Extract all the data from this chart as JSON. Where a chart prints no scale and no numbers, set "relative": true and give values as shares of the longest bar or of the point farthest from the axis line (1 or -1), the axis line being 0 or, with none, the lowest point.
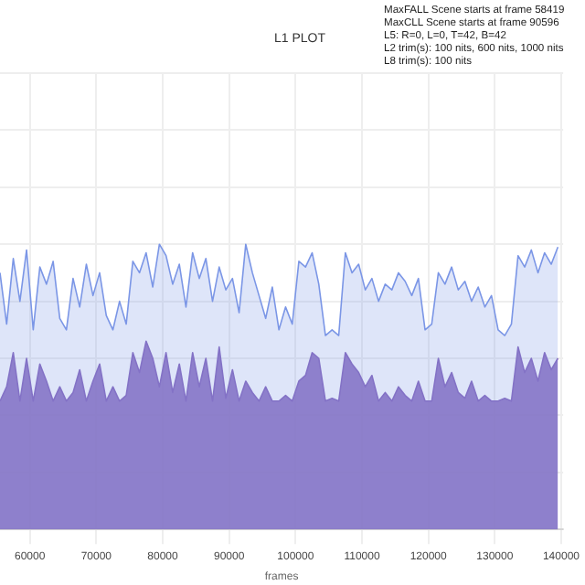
{
  "chart_data": {
    "type": "area",
    "relative": true,
    "title": "L1 PLOT",
    "xlabel": "frames",
    "annotations": [
      "MaxFALL Scene starts at frame 58419",
      "MaxCLL Scene starts at frame 90596",
      "L5: R=0, L=0, T=42, B=42",
      "L2 trim(s): 100 nits, 600 nits, 1000 nits",
      "L8 trim(s): 100 nits"
    ],
    "xlim": [
      55500,
      140300
    ],
    "xticks": [
      60000,
      70000,
      80000,
      90000,
      100000,
      110000,
      120000,
      130000,
      140000
    ],
    "grid": true,
    "legend": false,
    "series": [
      {
        "color": "#7b96e6",
        "x": [
          55500,
          56500,
          57500,
          58500,
          59500,
          60500,
          61500,
          62500,
          63500,
          64500,
          65500,
          66500,
          67500,
          68500,
          69500,
          70500,
          71500,
          72500,
          73500,
          74500,
          75500,
          76500,
          77500,
          78500,
          79500,
          80500,
          81500,
          82500,
          83500,
          84500,
          85500,
          86500,
          87500,
          88500,
          89500,
          90500,
          91500,
          92500,
          93500,
          94500,
          95500,
          96500,
          97500,
          98500,
          99500,
          100500,
          101500,
          102500,
          103500,
          104500,
          105500,
          106500,
          107500,
          108500,
          109500,
          110500,
          111500,
          112500,
          113500,
          114500,
          115500,
          116500,
          117500,
          118500,
          119500,
          120500,
          121500,
          122500,
          123500,
          124500,
          125500,
          126500,
          127500,
          128500,
          129500,
          130500,
          131500,
          132500,
          133500,
          134500,
          135500,
          136500,
          137500,
          138500,
          139500
        ],
        "values": [
          0.9,
          0.72,
          0.95,
          0.8,
          0.98,
          0.7,
          0.92,
          0.86,
          0.94,
          0.74,
          0.7,
          0.88,
          0.78,
          0.93,
          0.82,
          0.9,
          0.75,
          0.7,
          0.8,
          0.72,
          0.94,
          0.9,
          0.97,
          0.85,
          1.0,
          0.96,
          0.86,
          0.93,
          0.78,
          0.97,
          0.88,
          0.95,
          0.8,
          0.92,
          0.84,
          0.88,
          0.76,
          1.0,
          0.9,
          0.82,
          0.74,
          0.85,
          0.7,
          0.78,
          0.72,
          0.94,
          0.92,
          0.97,
          0.86,
          0.68,
          0.7,
          0.68,
          0.97,
          0.9,
          0.93,
          0.84,
          0.88,
          0.8,
          0.86,
          0.84,
          0.9,
          0.87,
          0.82,
          0.88,
          0.7,
          0.72,
          0.9,
          0.86,
          0.92,
          0.84,
          0.87,
          0.8,
          0.85,
          0.78,
          0.82,
          0.7,
          0.68,
          0.72,
          0.96,
          0.92,
          0.98,
          0.9,
          0.97,
          0.93,
          0.99
        ]
      },
      {
        "color": "#8666bb",
        "x": [
          55500,
          56500,
          57500,
          58500,
          59500,
          60500,
          61500,
          62500,
          63500,
          64500,
          65500,
          66500,
          67500,
          68500,
          69500,
          70500,
          71500,
          72500,
          73500,
          74500,
          75500,
          76500,
          77500,
          78500,
          79500,
          80500,
          81500,
          82500,
          83500,
          84500,
          85500,
          86500,
          87500,
          88500,
          89500,
          90500,
          91500,
          92500,
          93500,
          94500,
          95500,
          96500,
          97500,
          98500,
          99500,
          100500,
          101500,
          102500,
          103500,
          104500,
          105500,
          106500,
          107500,
          108500,
          109500,
          110500,
          111500,
          112500,
          113500,
          114500,
          115500,
          116500,
          117500,
          118500,
          119500,
          120500,
          121500,
          122500,
          123500,
          124500,
          125500,
          126500,
          127500,
          128500,
          129500,
          130500,
          131500,
          132500,
          133500,
          134500,
          135500,
          136500,
          137500,
          138500,
          139500
        ],
        "values": [
          0.45,
          0.5,
          0.62,
          0.45,
          0.6,
          0.45,
          0.58,
          0.52,
          0.45,
          0.5,
          0.45,
          0.48,
          0.56,
          0.45,
          0.52,
          0.58,
          0.45,
          0.5,
          0.45,
          0.47,
          0.62,
          0.55,
          0.66,
          0.6,
          0.5,
          0.62,
          0.48,
          0.58,
          0.45,
          0.62,
          0.5,
          0.6,
          0.45,
          0.64,
          0.46,
          0.56,
          0.45,
          0.52,
          0.48,
          0.45,
          0.5,
          0.45,
          0.45,
          0.47,
          0.45,
          0.52,
          0.54,
          0.62,
          0.6,
          0.45,
          0.46,
          0.45,
          0.62,
          0.58,
          0.55,
          0.5,
          0.54,
          0.45,
          0.48,
          0.45,
          0.5,
          0.47,
          0.45,
          0.52,
          0.45,
          0.45,
          0.6,
          0.5,
          0.55,
          0.48,
          0.46,
          0.52,
          0.45,
          0.47,
          0.45,
          0.45,
          0.46,
          0.45,
          0.64,
          0.55,
          0.6,
          0.52,
          0.62,
          0.56,
          0.6
        ]
      }
    ]
  }
}
